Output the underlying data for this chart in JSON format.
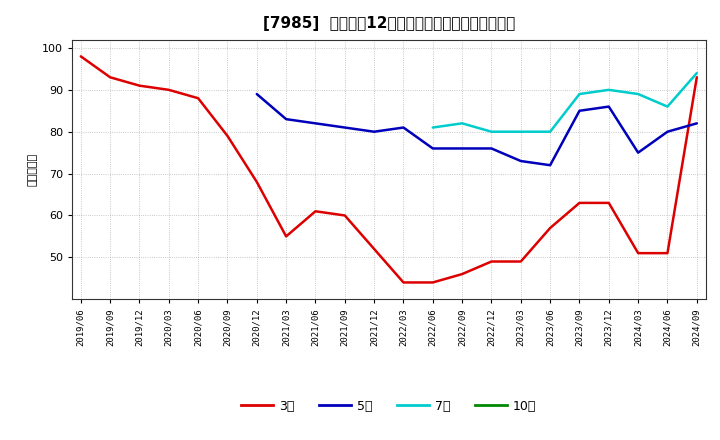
{
  "title": "[7985]  経常利益12か月移動合計の標準偏差の推移",
  "ylabel": "（百万円）",
  "ylim": [
    40,
    102
  ],
  "yticks": [
    50,
    60,
    70,
    80,
    90,
    100
  ],
  "background_color": "#ffffff",
  "plot_bg_color": "#ffffff",
  "grid_color": "#999999",
  "x_labels": [
    "2019/06",
    "2019/09",
    "2019/12",
    "2020/03",
    "2020/06",
    "2020/09",
    "2020/12",
    "2021/03",
    "2021/06",
    "2021/09",
    "2021/12",
    "2022/03",
    "2022/06",
    "2022/09",
    "2022/12",
    "2023/03",
    "2023/06",
    "2023/09",
    "2023/12",
    "2024/03",
    "2024/06",
    "2024/09"
  ],
  "series": [
    {
      "key": "3year",
      "color": "#dd0000",
      "label": "3年",
      "values": [
        98,
        93,
        91,
        90,
        88,
        79,
        68,
        55,
        61,
        60,
        52,
        44,
        44,
        46,
        49,
        49,
        57,
        63,
        63,
        51,
        51,
        93
      ]
    },
    {
      "key": "5year",
      "color": "#0000bb",
      "label": "5年",
      "values": [
        null,
        null,
        null,
        null,
        null,
        null,
        89,
        83,
        82,
        81,
        80,
        81,
        76,
        76,
        76,
        73,
        72,
        85,
        86,
        75,
        80,
        82
      ]
    },
    {
      "key": "7year",
      "color": "#00cccc",
      "label": "7年",
      "values": [
        null,
        null,
        null,
        null,
        null,
        null,
        null,
        null,
        null,
        null,
        null,
        null,
        81,
        82,
        80,
        80,
        80,
        89,
        90,
        89,
        86,
        94
      ]
    },
    {
      "key": "10year",
      "color": "#008800",
      "label": "10年",
      "values": [
        null,
        null,
        null,
        null,
        null,
        null,
        null,
        null,
        null,
        null,
        null,
        null,
        null,
        null,
        null,
        null,
        null,
        null,
        null,
        null,
        null,
        null
      ]
    }
  ]
}
